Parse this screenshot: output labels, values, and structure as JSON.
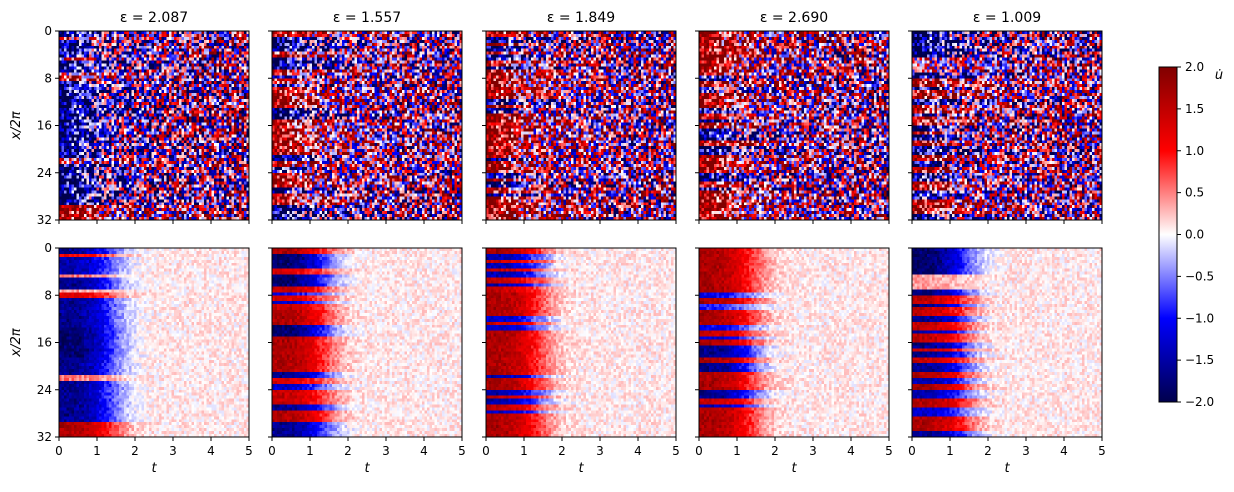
{
  "chart_data": {
    "type": "heatmap",
    "xlabel": "t",
    "ylabel": "x/2π",
    "xlim": [
      0,
      5
    ],
    "ylim": [
      32,
      0
    ],
    "xticks": [
      "0",
      "1",
      "2",
      "3",
      "4",
      "5"
    ],
    "yticks": [
      "0",
      "8",
      "16",
      "24",
      "32"
    ],
    "colormap": "seismic",
    "colorbar": {
      "label": "u̇",
      "min": -2.0,
      "max": 2.0,
      "ticks": [
        "2.0",
        "1.5",
        "1.0",
        "0.5",
        "0.0",
        "−0.5",
        "−1.0",
        "−1.5",
        "−2.0"
      ]
    },
    "columns": [
      {
        "title": "ε = 2.087",
        "initial_bands": [
          [
            0,
            0.8,
            -0.9
          ],
          [
            0.8,
            1.6,
            0.6
          ],
          [
            1.6,
            4.5,
            -0.8
          ],
          [
            4.5,
            5.2,
            0.3
          ],
          [
            5.2,
            6.8,
            -0.9
          ],
          [
            6.8,
            7.6,
            0.2
          ],
          [
            7.6,
            8.4,
            0.7
          ],
          [
            8.4,
            13.5,
            -0.9
          ],
          [
            13.5,
            18.5,
            -1.0
          ],
          [
            18.5,
            21.6,
            -0.9
          ],
          [
            21.6,
            22.6,
            0.3
          ],
          [
            22.6,
            29.6,
            -0.9
          ],
          [
            29.6,
            32,
            0.9
          ]
        ]
      },
      {
        "title": "ε = 1.557",
        "initial_bands": [
          [
            0,
            1.2,
            0.9
          ],
          [
            1.2,
            3.4,
            -1.0
          ],
          [
            3.4,
            4.3,
            0.7
          ],
          [
            4.3,
            6.4,
            -1.0
          ],
          [
            6.4,
            7.3,
            0.8
          ],
          [
            7.3,
            8.2,
            -0.6
          ],
          [
            8.2,
            8.9,
            0.7
          ],
          [
            8.9,
            9.7,
            -0.7
          ],
          [
            9.7,
            10.6,
            0.8
          ],
          [
            10.6,
            12.8,
            0.9
          ],
          [
            12.8,
            14.8,
            -1.0
          ],
          [
            14.8,
            21.0,
            0.9
          ],
          [
            21.0,
            22.1,
            -0.9
          ],
          [
            22.1,
            23.2,
            0.7
          ],
          [
            23.2,
            24.2,
            -0.7
          ],
          [
            24.2,
            25.3,
            0.8
          ],
          [
            25.3,
            26.5,
            0.8
          ],
          [
            26.5,
            27.4,
            -0.9
          ],
          [
            27.4,
            29.6,
            0.9
          ],
          [
            29.6,
            32,
            -0.9
          ]
        ]
      },
      {
        "title": "ε = 1.849",
        "initial_bands": [
          [
            0,
            1.0,
            0.9
          ],
          [
            1.0,
            1.8,
            -0.8
          ],
          [
            1.8,
            2.6,
            0.8
          ],
          [
            2.6,
            3.4,
            -0.8
          ],
          [
            3.4,
            4.2,
            0.8
          ],
          [
            4.2,
            5.0,
            -0.8
          ],
          [
            5.0,
            5.9,
            0.8
          ],
          [
            5.9,
            6.7,
            -0.8
          ],
          [
            6.7,
            7.6,
            0.8
          ],
          [
            7.6,
            9.0,
            0.9
          ],
          [
            9.0,
            11.6,
            0.9
          ],
          [
            11.6,
            12.4,
            -0.7
          ],
          [
            12.4,
            13.2,
            0.8
          ],
          [
            13.2,
            14.0,
            -0.7
          ],
          [
            14.0,
            21.4,
            0.9
          ],
          [
            21.4,
            22.2,
            -0.8
          ],
          [
            22.2,
            24.0,
            0.9
          ],
          [
            24.0,
            24.8,
            -0.8
          ],
          [
            24.8,
            25.7,
            0.8
          ],
          [
            25.7,
            26.6,
            -0.8
          ],
          [
            26.6,
            27.4,
            0.8
          ],
          [
            27.4,
            28.2,
            -0.7
          ],
          [
            28.2,
            32,
            0.9
          ]
        ]
      },
      {
        "title": "ε = 2.690",
        "initial_bands": [
          [
            0,
            7.5,
            0.9
          ],
          [
            7.5,
            8.3,
            -0.6
          ],
          [
            8.3,
            9.6,
            0.9
          ],
          [
            9.6,
            10.4,
            -0.5
          ],
          [
            10.4,
            13.2,
            0.9
          ],
          [
            13.2,
            14.0,
            -0.6
          ],
          [
            14.0,
            14.8,
            0.8
          ],
          [
            14.8,
            15.6,
            -0.7
          ],
          [
            15.6,
            16.6,
            0.9
          ],
          [
            16.6,
            18.6,
            -0.9
          ],
          [
            18.6,
            19.4,
            0.9
          ],
          [
            19.4,
            21.2,
            -0.9
          ],
          [
            21.2,
            24.0,
            0.9
          ],
          [
            24.0,
            25.4,
            -0.9
          ],
          [
            25.4,
            26.4,
            0.8
          ],
          [
            26.4,
            27.2,
            -0.8
          ],
          [
            27.2,
            32,
            0.9
          ]
        ]
      },
      {
        "title": "ε = 1.009",
        "initial_bands": [
          [
            0,
            4.6,
            -1.0
          ],
          [
            4.6,
            6.8,
            0.2
          ],
          [
            6.8,
            8.0,
            -0.9
          ],
          [
            8.0,
            9.3,
            0.8
          ],
          [
            9.3,
            10.2,
            -0.9
          ],
          [
            10.2,
            11.6,
            0.8
          ],
          [
            11.6,
            12.6,
            -0.9
          ],
          [
            12.6,
            13.9,
            0.8
          ],
          [
            13.9,
            14.7,
            -0.8
          ],
          [
            14.7,
            15.9,
            0.8
          ],
          [
            15.9,
            16.9,
            -0.9
          ],
          [
            16.9,
            17.7,
            0.8
          ],
          [
            17.7,
            18.5,
            -0.9
          ],
          [
            18.5,
            19.6,
            0.8
          ],
          [
            19.6,
            20.8,
            -0.9
          ],
          [
            20.8,
            22.0,
            0.9
          ],
          [
            22.0,
            23.2,
            -0.8
          ],
          [
            23.2,
            24.2,
            0.9
          ],
          [
            24.2,
            25.4,
            -0.8
          ],
          [
            25.4,
            27.0,
            0.9
          ],
          [
            27.0,
            28.4,
            -0.7
          ],
          [
            28.4,
            30.8,
            0.9
          ],
          [
            30.8,
            32,
            -0.9
          ]
        ]
      }
    ],
    "rows": [
      {
        "name": "top",
        "decay_time": null
      },
      {
        "name": "bottom",
        "decay_time": 1.5
      }
    ]
  }
}
